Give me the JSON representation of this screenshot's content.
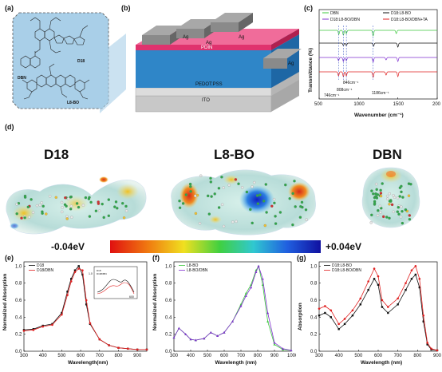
{
  "panels": {
    "a": {
      "label": "(a)",
      "molecules": [
        "DBN",
        "D18",
        "L8-BO"
      ]
    },
    "b": {
      "label": "(b)",
      "layers": [
        "Ag",
        "Ag",
        "Ag",
        "Ag",
        "PDIN",
        "PEDOT:PSS",
        "ITO"
      ]
    },
    "c": {
      "label": "(c)"
    },
    "d": {
      "label": "(d)",
      "titles": [
        "D18",
        "L8-BO",
        "DBN"
      ],
      "scale_min": "-0.04eV",
      "scale_max": "+0.04eV"
    },
    "e": {
      "label": "(e)"
    },
    "f": {
      "label": "(f)"
    },
    "g": {
      "label": "(g)"
    }
  },
  "colors": {
    "pdin": "#e0326e",
    "active": "#2f86c8",
    "ag": "#8a8a8a",
    "panel_a_bg": "#a9cfe8",
    "black": "#111111",
    "red": "#e02020",
    "green": "#3cc83c",
    "purple": "#8030d0"
  },
  "chart_data": [
    {
      "id": "c",
      "type": "line",
      "xlabel": "Wavenumber (cm⁻¹)",
      "ylabel": "Transmittance (%)",
      "xlim": [
        500,
        2000
      ],
      "xticks": [
        "500",
        "1000",
        "1500",
        "2000"
      ],
      "legend": [
        "DBN",
        "D18:L8-BO",
        "D18:L8-BO/DBN",
        "D18:L8-BO/DBN+TA"
      ],
      "annotations": [
        "746cm⁻¹",
        "808cm⁻¹",
        "846cm⁻¹",
        "1186cm⁻¹"
      ],
      "series": [
        {
          "name": "DBN",
          "color": "#3cc83c",
          "offset": 3,
          "dips": [
            [
              750,
              0.5
            ],
            [
              808,
              0.6
            ],
            [
              846,
              0.4
            ],
            [
              1186,
              0.7
            ],
            [
              1480,
              0.4
            ]
          ]
        },
        {
          "name": "D18:L8-BO",
          "color": "#111111",
          "offset": 2,
          "dips": [
            [
              808,
              0.3
            ],
            [
              846,
              0.3
            ],
            [
              1190,
              0.4
            ],
            [
              1500,
              0.5
            ]
          ]
        },
        {
          "name": "D18:L8-BO/DBN",
          "color": "#8030d0",
          "offset": 1,
          "dips": [
            [
              746,
              0.4
            ],
            [
              808,
              0.5
            ],
            [
              846,
              0.4
            ],
            [
              1186,
              0.6
            ],
            [
              1350,
              0.3
            ],
            [
              1500,
              0.5
            ]
          ]
        },
        {
          "name": "D18:L8-BO/DBN+TA",
          "color": "#e02020",
          "offset": 0,
          "dips": [
            [
              746,
              0.5
            ],
            [
              808,
              0.6
            ],
            [
              846,
              0.5
            ],
            [
              1186,
              0.7
            ],
            [
              1350,
              0.4
            ],
            [
              1500,
              0.6
            ]
          ]
        }
      ]
    },
    {
      "id": "e",
      "type": "line",
      "xlabel": "Wavelength(nm)",
      "ylabel": "Normalized Absorption",
      "xlim": [
        300,
        950
      ],
      "ylim": [
        0,
        1.05
      ],
      "xticks": [
        "300",
        "400",
        "500",
        "600",
        "700",
        "800",
        "900"
      ],
      "yticks": [
        "0.0",
        "0.2",
        "0.4",
        "0.6",
        "0.8",
        "1.0"
      ],
      "x": [
        300,
        350,
        400,
        450,
        500,
        530,
        550,
        570,
        590,
        610,
        630,
        650,
        700,
        750,
        800,
        850,
        900,
        950
      ],
      "series": [
        {
          "name": "D18",
          "color": "#111111",
          "values": [
            0.25,
            0.26,
            0.3,
            0.32,
            0.45,
            0.7,
            0.85,
            0.95,
            1.0,
            0.9,
            0.55,
            0.32,
            0.14,
            0.07,
            0.04,
            0.03,
            0.02,
            0.02
          ]
        },
        {
          "name": "D18/DBN",
          "color": "#e02020",
          "values": [
            0.24,
            0.25,
            0.29,
            0.31,
            0.43,
            0.66,
            0.82,
            0.93,
            0.97,
            0.95,
            0.6,
            0.33,
            0.14,
            0.07,
            0.04,
            0.03,
            0.02,
            0.02
          ]
        }
      ],
      "inset_legend": [
        "D18",
        "D18/DBN"
      ],
      "inset_tick": "1.0",
      "inset_xtick": "600"
    },
    {
      "id": "f",
      "type": "line",
      "xlabel": "Wavelength (nm)",
      "ylabel": "Normalized Absorption",
      "xlim": [
        300,
        1000
      ],
      "ylim": [
        0,
        1.05
      ],
      "xticks": [
        "300",
        "400",
        "500",
        "600",
        "700",
        "800",
        "900",
        "1000"
      ],
      "yticks": [
        "0.0",
        "0.2",
        "0.4",
        "0.6",
        "0.8",
        "1.0"
      ],
      "x": [
        300,
        330,
        370,
        400,
        430,
        480,
        520,
        560,
        600,
        650,
        700,
        730,
        760,
        790,
        805,
        830,
        860,
        900,
        950,
        1000
      ],
      "series": [
        {
          "name": "L8-BO",
          "color": "#3cc83c",
          "values": [
            0.16,
            0.27,
            0.2,
            0.14,
            0.13,
            0.15,
            0.22,
            0.18,
            0.22,
            0.35,
            0.55,
            0.68,
            0.78,
            0.95,
            1.0,
            0.78,
            0.35,
            0.08,
            0.02,
            0.01
          ]
        },
        {
          "name": "L8-BO/DBN",
          "color": "#8030d0",
          "values": [
            0.16,
            0.27,
            0.2,
            0.14,
            0.13,
            0.15,
            0.22,
            0.18,
            0.22,
            0.35,
            0.53,
            0.65,
            0.75,
            0.93,
            1.0,
            0.85,
            0.45,
            0.1,
            0.03,
            0.01
          ]
        }
      ]
    },
    {
      "id": "g",
      "type": "line",
      "xlabel": "Wavelength (nm)",
      "ylabel": "Absorption",
      "xlim": [
        300,
        900
      ],
      "ylim": [
        0,
        1.05
      ],
      "xticks": [
        "300",
        "400",
        "500",
        "600",
        "700",
        "800",
        "900"
      ],
      "yticks": [
        "0.0",
        "0.2",
        "0.4",
        "0.6",
        "0.8",
        "1.0"
      ],
      "x": [
        300,
        330,
        360,
        400,
        430,
        470,
        510,
        550,
        580,
        600,
        620,
        650,
        700,
        740,
        770,
        790,
        810,
        830,
        850,
        870,
        900
      ],
      "series": [
        {
          "name": "D18:L8-BO",
          "color": "#111111",
          "values": [
            0.42,
            0.45,
            0.4,
            0.26,
            0.32,
            0.42,
            0.55,
            0.72,
            0.85,
            0.78,
            0.52,
            0.45,
            0.55,
            0.72,
            0.85,
            0.9,
            0.75,
            0.35,
            0.08,
            0.02,
            0.01
          ]
        },
        {
          "name": "D18:L8-BO/DBN",
          "color": "#e02020",
          "values": [
            0.5,
            0.53,
            0.48,
            0.32,
            0.38,
            0.48,
            0.62,
            0.82,
            0.97,
            0.88,
            0.6,
            0.52,
            0.62,
            0.8,
            0.95,
            1.0,
            0.85,
            0.42,
            0.1,
            0.03,
            0.01
          ]
        }
      ]
    }
  ]
}
